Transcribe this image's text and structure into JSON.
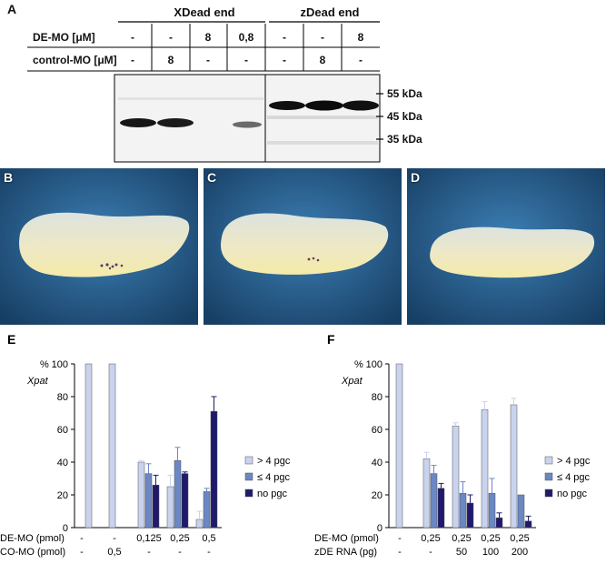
{
  "panel_a": {
    "letter": "A",
    "header_x": "XDead end",
    "header_z": "zDead end",
    "row1_label": "DE-MO [μM]",
    "row2_label": "control-MO [μM]",
    "row1_values": [
      "-",
      "-",
      "8",
      "0,8",
      "-",
      "-",
      "8"
    ],
    "row2_values": [
      "-",
      "8",
      "-",
      "-",
      "-",
      "8",
      "-"
    ],
    "kda_labels": [
      "55 kDa",
      "45 kDa",
      "35 kDa"
    ]
  },
  "photos": [
    {
      "letter": "B"
    },
    {
      "letter": "C"
    },
    {
      "letter": "D"
    }
  ],
  "legend": [
    "> 4 pgc",
    "≤ 4 pgc",
    "no pgc"
  ],
  "colors": {
    "light": "#c9d3ee",
    "mid": "#6b87c4",
    "dark": "#1f1a6b"
  },
  "chart_data": [
    {
      "type": "bar",
      "letter": "E",
      "ylabel": "%",
      "gene_label": "Xpat",
      "ylim": [
        0,
        100
      ],
      "yticks": [
        0,
        20,
        40,
        60,
        80,
        100
      ],
      "row_labels": [
        "DE-MO (pmol)",
        "CO-MO (pmol)"
      ],
      "categories_row1": [
        "-",
        "-",
        "0,125",
        "0,25",
        "0,5"
      ],
      "categories_row2": [
        "-",
        "0,5",
        "-",
        "-",
        "-"
      ],
      "series": [
        {
          "name": "> 4 pgc",
          "values": [
            100,
            100,
            40,
            25,
            5
          ],
          "errors": [
            0,
            0,
            1,
            7,
            5
          ]
        },
        {
          "name": "≤ 4 pgc",
          "values": [
            0,
            0,
            33,
            41,
            22
          ],
          "errors": [
            0,
            0,
            6,
            8,
            2
          ]
        },
        {
          "name": "no pgc",
          "values": [
            0,
            0,
            26,
            33,
            71
          ],
          "errors": [
            0,
            0,
            6,
            1,
            9
          ]
        }
      ]
    },
    {
      "type": "bar",
      "letter": "F",
      "ylabel": "%",
      "gene_label": "Xpat",
      "ylim": [
        0,
        100
      ],
      "yticks": [
        0,
        20,
        40,
        60,
        80,
        100
      ],
      "row_labels": [
        "DE-MO (pmol)",
        "zDE RNA (pg)"
      ],
      "categories_row1": [
        "-",
        "0,25",
        "0,25",
        "0,25",
        "0,25"
      ],
      "categories_row2": [
        "-",
        "-",
        "50",
        "100",
        "200"
      ],
      "series": [
        {
          "name": "> 4 pgc",
          "values": [
            100,
            42,
            62,
            72,
            75
          ],
          "errors": [
            0,
            4,
            2,
            5,
            4
          ]
        },
        {
          "name": "≤ 4 pgc",
          "values": [
            0,
            33,
            21,
            21,
            20
          ],
          "errors": [
            0,
            5,
            7,
            9,
            0
          ]
        },
        {
          "name": "no pgc",
          "values": [
            0,
            24,
            15,
            6,
            4
          ],
          "errors": [
            0,
            3,
            5,
            3,
            3
          ]
        }
      ]
    }
  ]
}
